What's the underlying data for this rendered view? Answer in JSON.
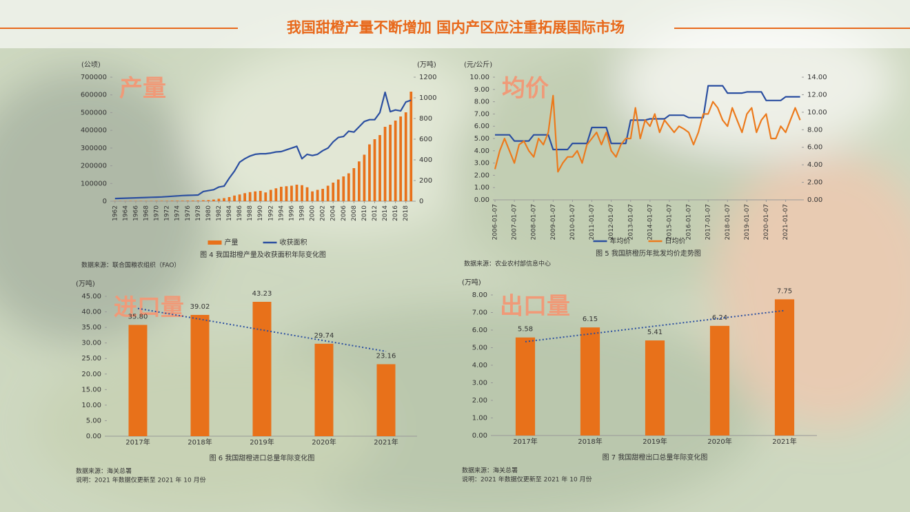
{
  "title": "我国甜橙产量不断增加 国内产区应注重拓展国际市场",
  "chart_data": [
    {
      "type": "combo",
      "label": "产量",
      "y_unit": "(公顷)",
      "y2_unit": "(万吨)",
      "caption": "图 4   我国甜橙产量及收获面积年际变化图",
      "source": "数据来源：联合国粮农组织（FAO）",
      "x": [
        1962,
        1963,
        1964,
        1965,
        1966,
        1967,
        1968,
        1969,
        1970,
        1971,
        1972,
        1973,
        1974,
        1975,
        1976,
        1977,
        1978,
        1979,
        1980,
        1981,
        1982,
        1983,
        1984,
        1985,
        1986,
        1987,
        1988,
        1989,
        1990,
        1991,
        1992,
        1993,
        1994,
        1995,
        1996,
        1997,
        1998,
        1999,
        2000,
        2001,
        2002,
        2003,
        2004,
        2005,
        2006,
        2007,
        2008,
        2009,
        2010,
        2011,
        2012,
        2013,
        2014,
        2015,
        2016,
        2017,
        2018,
        2019
      ],
      "xlim": [
        1961.5,
        2019.5
      ],
      "xticks": [
        1962,
        1964,
        1966,
        1968,
        1970,
        1972,
        1974,
        1976,
        1978,
        1980,
        1982,
        1984,
        1986,
        1988,
        1990,
        1992,
        1994,
        1996,
        1998,
        2000,
        2002,
        2004,
        2006,
        2008,
        2010,
        2012,
        2014,
        2016,
        2018
      ],
      "ylim": [
        0,
        700000
      ],
      "yticks": [
        0,
        100000,
        200000,
        300000,
        400000,
        500000,
        600000,
        700000
      ],
      "y2lim": [
        0,
        1200
      ],
      "y2ticks": [
        0,
        200,
        400,
        600,
        800,
        1000,
        1200
      ],
      "legend": true,
      "series": [
        {
          "name": "产量",
          "type": "bar",
          "axis": "y2",
          "color": "#e8711a",
          "values": [
            2,
            2,
            2,
            3,
            3,
            3,
            3,
            3,
            4,
            4,
            4,
            5,
            5,
            5,
            6,
            6,
            7,
            9,
            11,
            16,
            24,
            30,
            40,
            55,
            65,
            78,
            88,
            95,
            100,
            85,
            110,
            125,
            140,
            145,
            150,
            160,
            155,
            135,
            95,
            110,
            120,
            150,
            180,
            210,
            240,
            270,
            320,
            385,
            450,
            550,
            600,
            640,
            720,
            740,
            780,
            820,
            860,
            1060
          ]
        },
        {
          "name": "收获面积",
          "type": "line",
          "color": "#2a4ea0",
          "values": [
            15000,
            16000,
            17000,
            18000,
            19000,
            20000,
            21000,
            22000,
            23000,
            24000,
            26000,
            28000,
            30000,
            32000,
            33000,
            34000,
            35000,
            55000,
            60000,
            65000,
            80000,
            85000,
            130000,
            170000,
            220000,
            240000,
            255000,
            265000,
            268000,
            268000,
            272000,
            278000,
            280000,
            290000,
            300000,
            310000,
            240000,
            265000,
            258000,
            265000,
            285000,
            300000,
            335000,
            360000,
            365000,
            395000,
            390000,
            420000,
            450000,
            460000,
            460000,
            500000,
            615000,
            505000,
            515000,
            510000,
            560000,
            570000
          ]
        }
      ]
    },
    {
      "type": "line",
      "label": "均价",
      "y_unit": "(元/公斤)",
      "caption": "图 5   我国脐橙历年批发均价走势图",
      "source": "数据来源：农业农村部信息中心",
      "x": [
        "2006-01-07",
        "2006-04-07",
        "2006-07-07",
        "2006-10-07",
        "2007-01-07",
        "2007-04-07",
        "2007-07-07",
        "2007-10-07",
        "2008-01-07",
        "2008-04-07",
        "2008-07-07",
        "2008-10-07",
        "2009-01-07",
        "2009-04-07",
        "2009-07-07",
        "2009-10-07",
        "2010-01-07",
        "2010-04-07",
        "2010-07-07",
        "2010-10-07",
        "2011-01-07",
        "2011-04-07",
        "2011-07-07",
        "2011-10-07",
        "2012-01-07",
        "2012-04-07",
        "2012-07-07",
        "2012-10-07",
        "2013-01-07",
        "2013-04-07",
        "2013-07-07",
        "2013-10-07",
        "2014-01-07",
        "2014-04-07",
        "2014-07-07",
        "2014-10-07",
        "2015-01-07",
        "2015-04-07",
        "2015-07-07",
        "2015-10-07",
        "2016-01-07",
        "2016-04-07",
        "2016-07-07",
        "2016-10-07",
        "2017-01-07",
        "2017-04-07",
        "2017-07-07",
        "2017-10-07",
        "2018-01-07",
        "2018-04-07",
        "2018-07-07",
        "2018-10-07",
        "2019-01-07",
        "2019-04-07",
        "2019-07-07",
        "2019-10-07",
        "2020-01-07",
        "2020-04-07",
        "2020-07-07",
        "2020-10-07",
        "2021-01-07",
        "2021-04-07",
        "2021-07-07",
        "2021-10-07"
      ],
      "xlim": [
        "2006-01-07",
        "2021-11-07"
      ],
      "xticks": [
        "2006-01-07",
        "2007-01-07",
        "2008-01-07",
        "2009-01-07",
        "2010-01-07",
        "2011-01-07",
        "2012-01-07",
        "2013-01-07",
        "2014-01-07",
        "2015-01-07",
        "2016-01-07",
        "2017-01-07",
        "2018-01-07",
        "2019-01-07",
        "2020-01-07",
        "2021-01-07"
      ],
      "ylim": [
        0,
        10
      ],
      "yticks": [
        {
          "value": 0,
          "label": "0.00"
        },
        {
          "value": 1,
          "label": "1.00"
        },
        {
          "value": 2,
          "label": "2.00"
        },
        {
          "value": 3,
          "label": "3.00"
        },
        {
          "value": 4,
          "label": "4.00"
        },
        {
          "value": 5,
          "label": "5.00"
        },
        {
          "value": 6,
          "label": "6.00"
        },
        {
          "value": 7,
          "label": "7.00"
        },
        {
          "value": 8,
          "label": "8.00"
        },
        {
          "value": 9,
          "label": "9.00"
        },
        {
          "value": 10,
          "label": "10.00"
        }
      ],
      "y2lim": [
        0,
        14
      ],
      "y2ticks": [
        {
          "value": 0,
          "label": "0.00"
        },
        {
          "value": 2,
          "label": "2.00"
        },
        {
          "value": 4,
          "label": "4.00"
        },
        {
          "value": 6,
          "label": "6.00"
        },
        {
          "value": 8,
          "label": "8.00"
        },
        {
          "value": 10,
          "label": "10.00"
        },
        {
          "value": 12,
          "label": "12.00"
        },
        {
          "value": 14,
          "label": "14.00"
        }
      ],
      "legend": true,
      "series": [
        {
          "name": "年均价",
          "type": "line",
          "color": "#2a4ea0",
          "values": [
            5.3,
            5.3,
            5.3,
            5.3,
            4.8,
            4.8,
            4.8,
            4.8,
            5.3,
            5.3,
            5.3,
            5.3,
            4.1,
            4.1,
            4.1,
            4.1,
            4.6,
            4.6,
            4.6,
            4.6,
            5.9,
            5.9,
            5.9,
            5.9,
            4.6,
            4.6,
            4.6,
            4.6,
            6.5,
            6.5,
            6.5,
            6.5,
            6.6,
            6.6,
            6.6,
            6.6,
            6.9,
            6.9,
            6.9,
            6.9,
            6.7,
            6.7,
            6.7,
            6.7,
            9.3,
            9.3,
            9.3,
            9.3,
            8.7,
            8.7,
            8.7,
            8.7,
            8.8,
            8.8,
            8.8,
            8.8,
            8.1,
            8.1,
            8.1,
            8.1,
            8.4,
            8.4,
            8.4,
            8.4
          ]
        },
        {
          "name": "日均价",
          "type": "line",
          "axis": "y2",
          "color": "#ec7a1c",
          "values": [
            3.5,
            5.6,
            7.0,
            5.6,
            4.2,
            6.3,
            6.7,
            5.6,
            4.9,
            7.0,
            6.3,
            7.7,
            11.9,
            3.2,
            4.2,
            4.9,
            4.9,
            5.6,
            4.2,
            6.3,
            7.0,
            7.7,
            6.3,
            7.7,
            5.6,
            4.9,
            6.3,
            7.0,
            7.0,
            10.5,
            7.0,
            9.1,
            8.4,
            9.8,
            7.7,
            9.1,
            8.4,
            7.7,
            8.4,
            8.1,
            7.7,
            6.3,
            7.7,
            9.8,
            9.8,
            11.2,
            10.5,
            9.1,
            8.4,
            10.5,
            9.1,
            7.7,
            9.8,
            10.5,
            7.7,
            9.1,
            9.8,
            7.0,
            7.0,
            8.4,
            7.7,
            9.1,
            10.5,
            9.1
          ]
        }
      ]
    },
    {
      "type": "bar",
      "label": "进口量",
      "y_unit": "(万吨)",
      "caption": "图 6   我国甜橙进口总量年际变化图",
      "source": "数据来源：海关总署",
      "note": "说明：2021 年数据仅更新至 2021 年 10 月份",
      "categories": [
        "2017年",
        "2018年",
        "2019年",
        "2020年",
        "2021年"
      ],
      "values": [
        35.8,
        39.02,
        43.23,
        29.74,
        23.16
      ],
      "value_labels": [
        "35.80",
        "39.02",
        "43.23",
        "29.74",
        "23.16"
      ],
      "color": "#e8711a",
      "trendline": true,
      "trend_color": "#2a4ea0",
      "ylim": [
        0,
        45
      ],
      "yticks": [
        {
          "value": 0,
          "label": "0.00"
        },
        {
          "value": 5,
          "label": "5.00"
        },
        {
          "value": 10,
          "label": "10.00"
        },
        {
          "value": 15,
          "label": "15.00"
        },
        {
          "value": 20,
          "label": "20.00"
        },
        {
          "value": 25,
          "label": "25.00"
        },
        {
          "value": 30,
          "label": "30.00"
        },
        {
          "value": 35,
          "label": "35.00"
        },
        {
          "value": 40,
          "label": "40.00"
        },
        {
          "value": 45,
          "label": "45.00"
        }
      ]
    },
    {
      "type": "bar",
      "label": "出口量",
      "y_unit": "(万吨)",
      "caption": "图 7   我国甜橙出口总量年际变化图",
      "source": "数据来源：海关总署",
      "note": "说明：2021 年数据仅更新至 2021 年 10 月份",
      "categories": [
        "2017年",
        "2018年",
        "2019年",
        "2020年",
        "2021年"
      ],
      "values": [
        5.58,
        6.15,
        5.41,
        6.24,
        7.75
      ],
      "color": "#e8711a",
      "trendline": true,
      "trend_color": "#2a4ea0",
      "ylim": [
        0,
        8
      ],
      "yticks": [
        {
          "value": 0,
          "label": "0.00"
        },
        {
          "value": 1,
          "label": "1.00"
        },
        {
          "value": 2,
          "label": "2.00"
        },
        {
          "value": 3,
          "label": "3.00"
        },
        {
          "value": 4,
          "label": "4.00"
        },
        {
          "value": 5,
          "label": "5.00"
        },
        {
          "value": 6,
          "label": "6.00"
        },
        {
          "value": 7,
          "label": "7.00"
        },
        {
          "value": 8,
          "label": "8.00"
        }
      ]
    }
  ]
}
